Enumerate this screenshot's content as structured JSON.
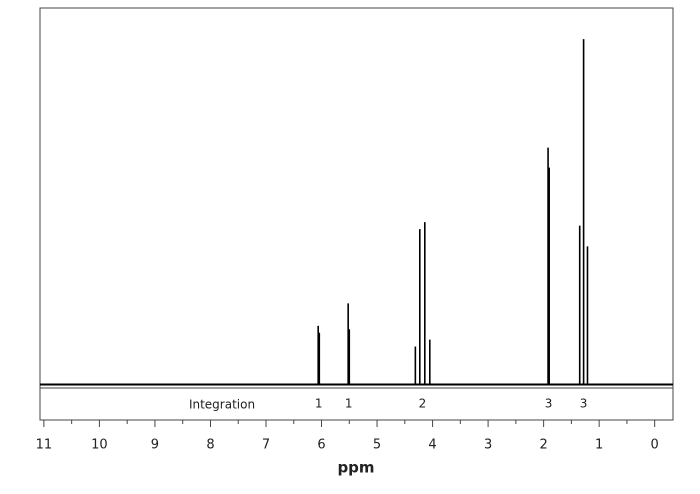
{
  "chart_data": {
    "type": "spectrum",
    "x_label": "ppm",
    "integration_label": "Integration",
    "color": "#000000",
    "xlim": [
      11.07,
      -0.33
    ],
    "ylim": [
      -1,
      109
    ],
    "xticks": [
      11,
      10,
      9,
      8,
      7,
      6,
      5,
      4,
      3,
      2,
      1,
      0
    ],
    "groups": [
      {
        "integration": 1,
        "x": [
          6.06,
          6.04
        ],
        "values": [
          17,
          15
        ]
      },
      {
        "integration": 1,
        "x": [
          5.52,
          5.5
        ],
        "values": [
          23.5,
          16
        ]
      },
      {
        "integration": 2,
        "x": [
          4.31,
          4.23,
          4.14,
          4.05
        ],
        "values": [
          11,
          45,
          47,
          13
        ]
      },
      {
        "integration": 3,
        "x": [
          1.92,
          1.9
        ],
        "values": [
          68.6,
          62.8
        ]
      },
      {
        "integration": 3,
        "x": [
          1.35,
          1.28,
          1.21
        ],
        "values": [
          46,
          100,
          40
        ]
      }
    ]
  }
}
